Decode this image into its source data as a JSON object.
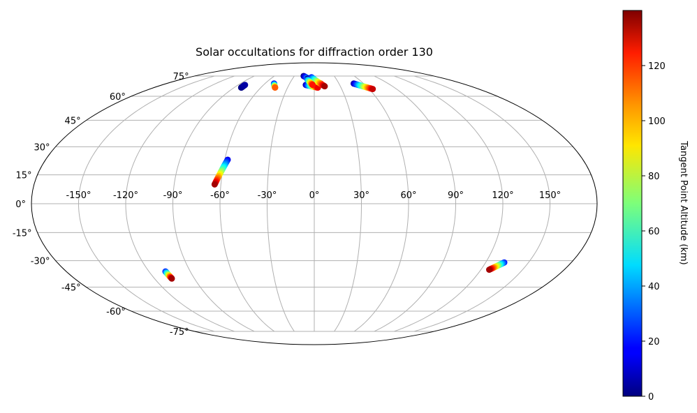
{
  "chart_data": {
    "type": "scatter",
    "projection": "mollweide",
    "title": "Solar occultations for diffraction order 130",
    "grid": true,
    "longitude_ticks": [
      "-150°",
      "-120°",
      "-90°",
      "-60°",
      "-30°",
      "0°",
      "30°",
      "60°",
      "90°",
      "120°",
      "150°"
    ],
    "latitude_ticks": [
      "75°",
      "60°",
      "45°",
      "30°",
      "15°",
      "0°",
      "-15°",
      "-30°",
      "-45°",
      "-60°",
      "-75°"
    ],
    "colorbar": {
      "label": "Tangent Point Altitude (km)",
      "colormap": "jet",
      "range": [
        0,
        140
      ],
      "ticks": [
        "0",
        "20",
        "40",
        "60",
        "80",
        "100",
        "120"
      ]
    },
    "tracks": [
      {
        "lon": [
          -82,
          -82
        ],
        "lat": [
          66,
          68
        ],
        "alt": [
          0,
          5
        ]
      },
      {
        "lon": [
          -49,
          -44
        ],
        "lat": [
          69,
          66
        ],
        "alt": [
          10,
          110
        ]
      },
      {
        "lon": [
          -16,
          8
        ],
        "lat": [
          75,
          69
        ],
        "alt": [
          0,
          130
        ]
      },
      {
        "lon": [
          -9,
          -1
        ],
        "lat": [
          73,
          67
        ],
        "alt": [
          0,
          90
        ]
      },
      {
        "lon": [
          -10,
          4
        ],
        "lat": [
          68,
          66
        ],
        "alt": [
          5,
          125
        ]
      },
      {
        "lon": [
          -4,
          12
        ],
        "lat": [
          74,
          67
        ],
        "alt": [
          20,
          135
        ]
      },
      {
        "lon": [
          -9,
          -2
        ],
        "lat": [
          72,
          68
        ],
        "alt": [
          30,
          120
        ]
      },
      {
        "lon": [
          48,
          64
        ],
        "lat": [
          69,
          65
        ],
        "alt": [
          5,
          130
        ]
      },
      {
        "lon": [
          -58,
          -64
        ],
        "lat": [
          23,
          10
        ],
        "alt": [
          15,
          135
        ]
      },
      {
        "lon": [
          -108,
          -107
        ],
        "lat": [
          -36,
          -40
        ],
        "alt": [
          20,
          135
        ]
      },
      {
        "lon": [
          133,
          126
        ],
        "lat": [
          -31,
          -35
        ],
        "alt": [
          20,
          135
        ]
      }
    ]
  }
}
